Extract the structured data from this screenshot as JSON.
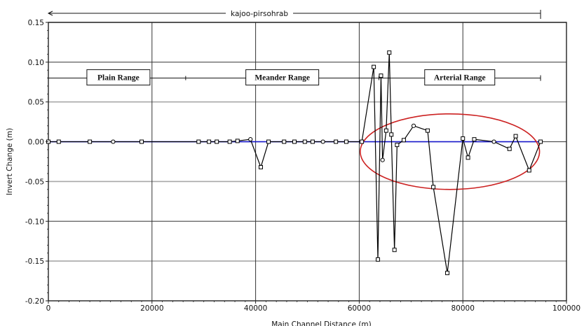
{
  "chart_data": {
    "type": "line",
    "title": "",
    "xlabel": "Main Channel Distance (m)",
    "ylabel": "Invert Change (m)",
    "xlim": [
      0,
      100000
    ],
    "ylim": [
      -0.2,
      0.15
    ],
    "x_ticks": [
      0,
      20000,
      40000,
      60000,
      80000,
      100000
    ],
    "x_tick_labels": [
      "0",
      "20000",
      "40000",
      "60000",
      "80000",
      "100000"
    ],
    "y_ticks": [
      -0.2,
      -0.15,
      -0.1,
      -0.05,
      0.0,
      0.05,
      0.1,
      0.15
    ],
    "y_tick_labels": [
      "-0.20",
      "-0.15",
      "-0.10",
      "-0.05",
      "0.00",
      "0.05",
      "0.10",
      "0.15"
    ],
    "grid": true,
    "reach_label": "kajoo-pirsohrab",
    "reach_extent": [
      0,
      95000
    ],
    "ranges": [
      {
        "label": "Plain Range",
        "x_start": 0,
        "x_end": 26500
      },
      {
        "label": "Meander Range",
        "x_start": 26500,
        "x_end": 63800
      },
      {
        "label": "Arterial Range",
        "x_start": 63800,
        "x_end": 95000
      }
    ],
    "range_line_y": 0.08,
    "baseline_y": 0.0,
    "highlight": {
      "shape": "ellipse",
      "cx": 77500,
      "cy": -0.0125,
      "rx": 17300,
      "ry": 0.0475,
      "color": "#cc2222"
    },
    "series": [
      {
        "color": "#000000",
        "x": [
          0,
          2000,
          8000,
          12500,
          18000,
          29000,
          31000,
          32500,
          35000,
          36500,
          39000,
          41000,
          42500,
          45500,
          47500,
          49500,
          51000,
          53000,
          55500,
          57500,
          60500,
          62800,
          63600,
          64200,
          64500,
          65200,
          65800,
          66200,
          66800,
          67300,
          68600,
          70500,
          73200,
          74300,
          77000,
          80000,
          81000,
          82200,
          86000,
          89000,
          90200,
          92800,
          95000
        ],
        "y": [
          0.0,
          0.0,
          0.0,
          0.0,
          0.0,
          0.0,
          0.0,
          0.0,
          0.0,
          0.001,
          0.003,
          -0.032,
          0.0,
          0.0,
          0.0,
          0.0,
          0.0,
          0.0,
          0.0,
          0.0,
          0.0,
          0.094,
          -0.148,
          0.083,
          -0.023,
          0.014,
          0.112,
          0.009,
          -0.136,
          -0.004,
          0.002,
          0.02,
          0.014,
          -0.057,
          -0.165,
          0.004,
          -0.02,
          0.003,
          0.0,
          -0.009,
          0.007,
          -0.036,
          0.0
        ]
      }
    ]
  }
}
